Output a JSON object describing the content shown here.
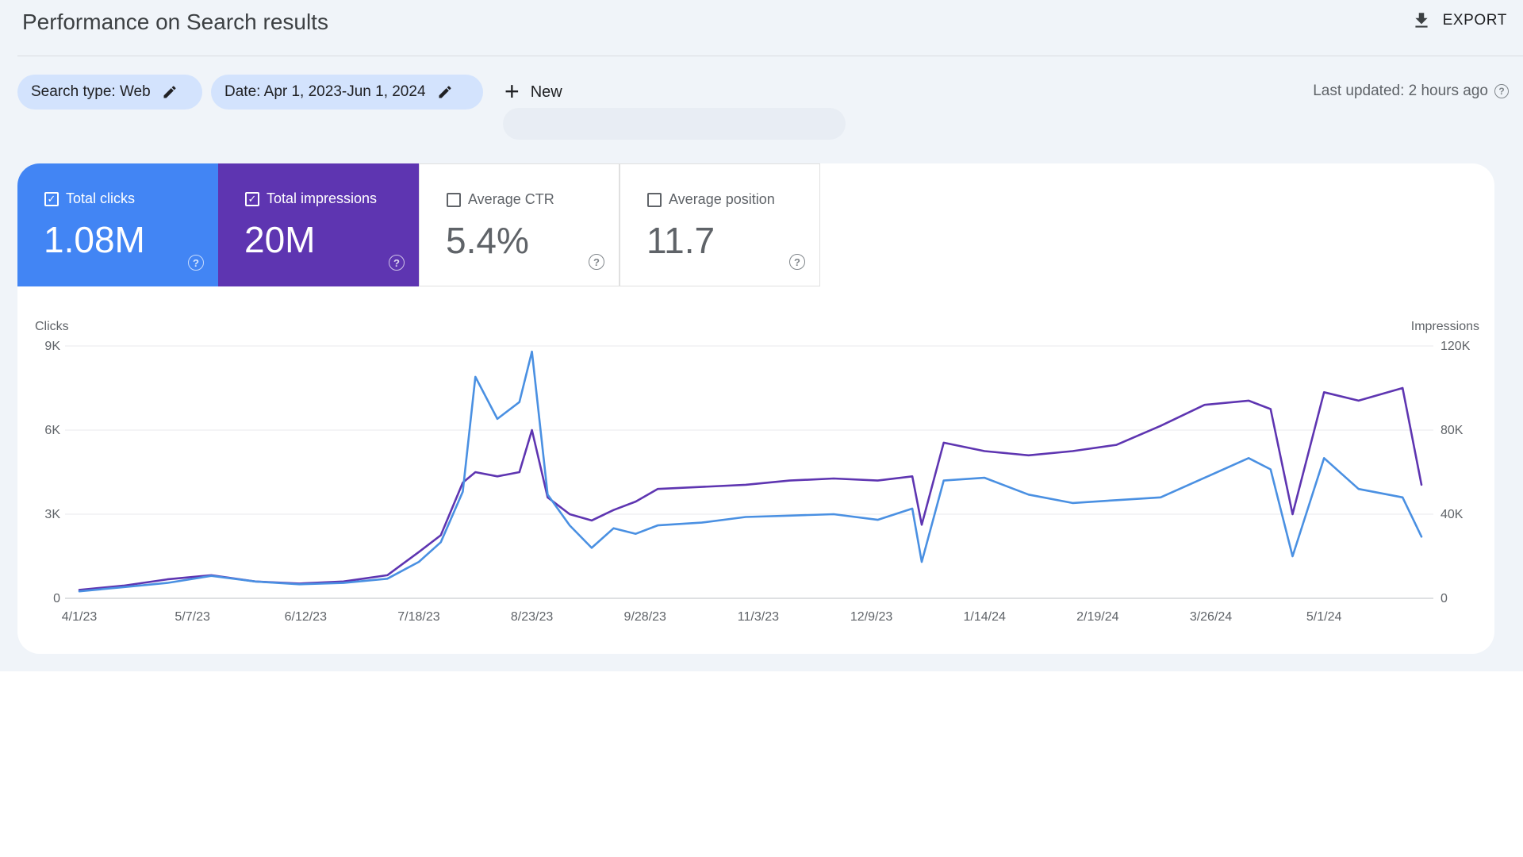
{
  "header": {
    "title": "Performance on Search results",
    "export_label": "EXPORT"
  },
  "filters": {
    "search_type": "Search type: Web",
    "date": "Date: Apr 1, 2023-Jun 1, 2024",
    "new_label": "New",
    "last_updated": "Last updated: 2 hours ago"
  },
  "metrics": [
    {
      "label": "Total clicks",
      "value": "1.08M",
      "checked": true,
      "color": "#4285f4"
    },
    {
      "label": "Total impressions",
      "value": "20M",
      "checked": true,
      "color": "#5e35b1"
    },
    {
      "label": "Average CTR",
      "value": "5.4%",
      "checked": false
    },
    {
      "label": "Average position",
      "value": "11.7",
      "checked": false
    }
  ],
  "chart_data": {
    "type": "line",
    "ylabel": "Clicks",
    "y2label": "Impressions",
    "ylim": [
      0,
      9000
    ],
    "y2lim": [
      0,
      120000
    ],
    "y_ticks": [
      "0",
      "3K",
      "6K",
      "9K"
    ],
    "y2_ticks": [
      "0",
      "40K",
      "80K",
      "120K"
    ],
    "x_ticks": [
      "4/1/23",
      "5/7/23",
      "6/12/23",
      "7/18/23",
      "8/23/23",
      "9/28/23",
      "11/3/23",
      "12/9/23",
      "1/14/24",
      "2/19/24",
      "3/26/24",
      "5/1/24"
    ],
    "grid": true,
    "series": [
      {
        "axis": "left",
        "color": "#4a90e2",
        "x": [
          "4/1/23",
          "4/15/23",
          "4/29/23",
          "5/13/23",
          "5/27/23",
          "6/10/23",
          "6/24/23",
          "7/8/23",
          "7/18/23",
          "7/25/23",
          "8/1/23",
          "8/5/23",
          "8/12/23",
          "8/19/23",
          "8/23/23",
          "8/28/23",
          "9/4/23",
          "9/11/23",
          "9/18/23",
          "9/25/23",
          "10/2/23",
          "10/16/23",
          "10/30/23",
          "11/13/23",
          "11/27/23",
          "12/11/23",
          "12/22/23",
          "12/25/23",
          "1/1/24",
          "1/14/24",
          "1/28/24",
          "2/11/24",
          "2/25/24",
          "3/10/24",
          "3/24/24",
          "4/7/24",
          "4/14/24",
          "4/21/24",
          "5/1/24",
          "5/12/24",
          "5/26/24",
          "6/1/24"
        ],
        "values": [
          250,
          400,
          550,
          800,
          600,
          500,
          550,
          700,
          1300,
          2000,
          3800,
          7900,
          6400,
          7000,
          8800,
          3700,
          2600,
          1800,
          2500,
          2300,
          2600,
          2700,
          2900,
          2950,
          3000,
          2800,
          3200,
          1300,
          4200,
          4300,
          3700,
          3400,
          3500,
          3600,
          4300,
          5000,
          4600,
          1500,
          5000,
          3900,
          3600,
          2200
        ]
      },
      {
        "axis": "right",
        "color": "#5e35b1",
        "x": [
          "4/1/23",
          "4/15/23",
          "4/29/23",
          "5/13/23",
          "5/27/23",
          "6/10/23",
          "6/24/23",
          "7/8/23",
          "7/18/23",
          "7/25/23",
          "8/1/23",
          "8/5/23",
          "8/12/23",
          "8/19/23",
          "8/23/23",
          "8/28/23",
          "9/4/23",
          "9/11/23",
          "9/18/23",
          "9/25/23",
          "10/2/23",
          "10/16/23",
          "10/30/23",
          "11/13/23",
          "11/27/23",
          "12/11/23",
          "12/22/23",
          "12/25/23",
          "1/1/24",
          "1/14/24",
          "1/28/24",
          "2/11/24",
          "2/25/24",
          "3/10/24",
          "3/24/24",
          "4/7/24",
          "4/14/24",
          "4/21/24",
          "5/1/24",
          "5/12/24",
          "5/26/24",
          "6/1/24"
        ],
        "values": [
          4000,
          6000,
          9000,
          11000,
          8000,
          7000,
          8000,
          11000,
          22000,
          30000,
          55000,
          60000,
          58000,
          60000,
          80000,
          48000,
          40000,
          37000,
          42000,
          46000,
          52000,
          53000,
          54000,
          56000,
          57000,
          56000,
          58000,
          35000,
          74000,
          70000,
          68000,
          70000,
          73000,
          82000,
          92000,
          94000,
          90000,
          40000,
          98000,
          94000,
          100000,
          54000
        ]
      }
    ]
  }
}
